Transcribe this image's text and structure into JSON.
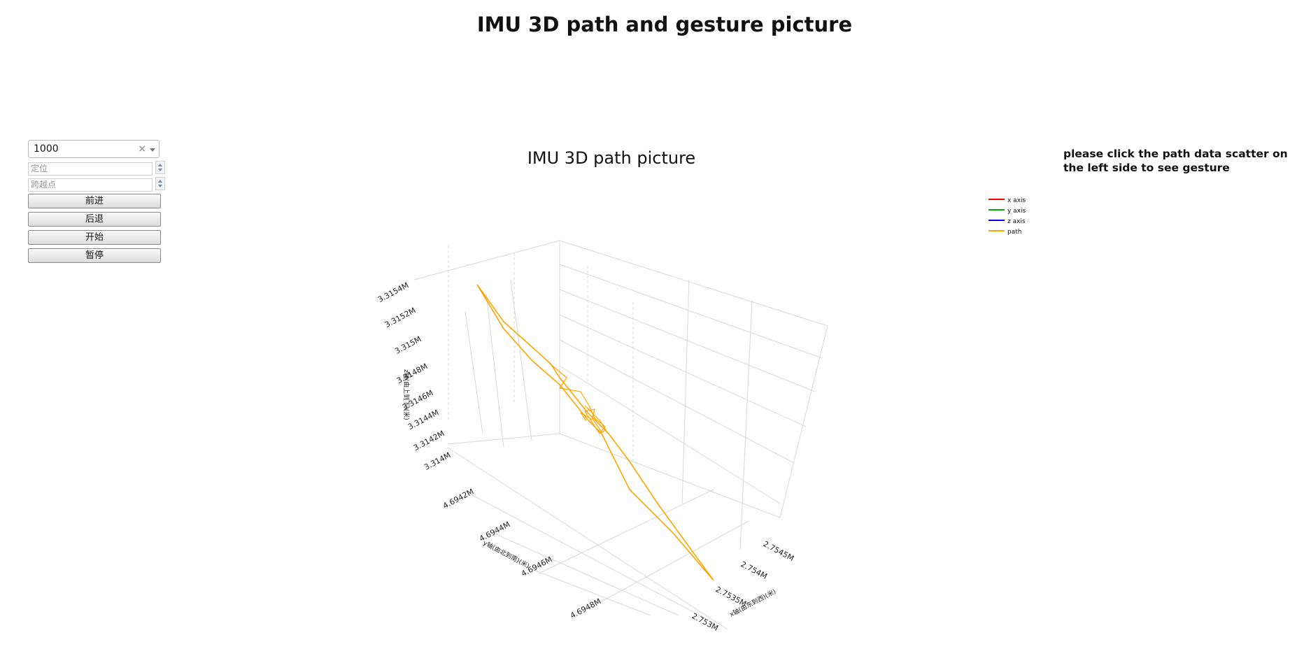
{
  "page": {
    "title": "IMU 3D path and gesture picture"
  },
  "controls": {
    "interval_select": {
      "value": "1000",
      "clear_glyph": "×"
    },
    "locate_input": {
      "placeholder": "定位"
    },
    "skip_input": {
      "placeholder": "跨越点"
    },
    "buttons": {
      "forward": "前进",
      "back": "后退",
      "start": "开始",
      "pause": "暂停"
    }
  },
  "hint": {
    "text": "please click the path data scatter on the left side to see gesture"
  },
  "chart_data": {
    "type": "line",
    "title": "IMU 3D path picture",
    "xlabel": "x轴(由东到西)(米)",
    "ylabel": "y轴(由北到南)(米)",
    "zlabel": "z轴(由上到下)(米)",
    "x_ticks": [
      "2.7545M",
      "2.754M",
      "2.7535M",
      "2.753M"
    ],
    "y_ticks": [
      "4.6942M",
      "4.6944M",
      "4.6946M",
      "4.6948M"
    ],
    "z_ticks": [
      "3.314M",
      "3.3142M",
      "3.3144M",
      "3.3146M",
      "3.3148M",
      "3.315M",
      "3.3152M",
      "3.3154M"
    ],
    "grid": true,
    "legend_position": "top-right",
    "series": [
      {
        "name": "x axis",
        "color": "#ff0000"
      },
      {
        "name": "y axis",
        "color": "#00aa00"
      },
      {
        "name": "z axis",
        "color": "#0000ff"
      },
      {
        "name": "path",
        "color": "#ffa500"
      }
    ]
  }
}
